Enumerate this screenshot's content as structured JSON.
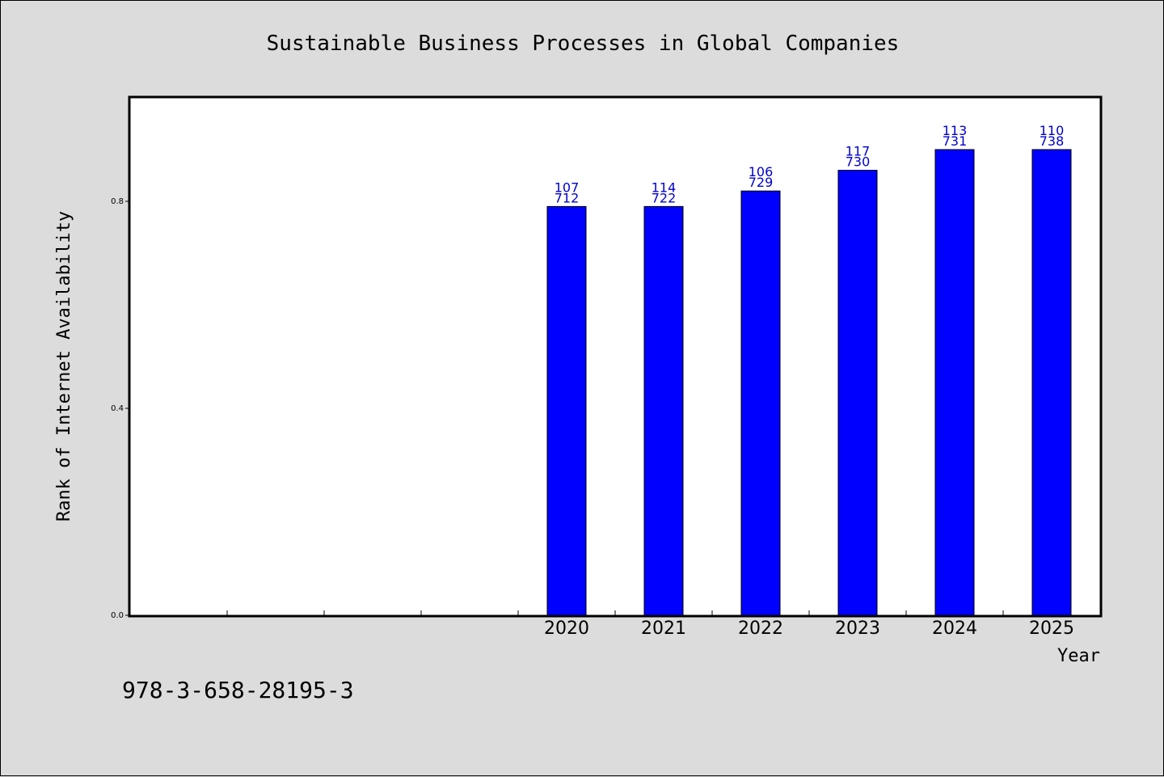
{
  "chart_data": {
    "type": "bar",
    "title": "Sustainable Business Processes in Global Companies",
    "xlabel": "Year",
    "ylabel": "Rank of Internet Availability",
    "categories": [
      "",
      "",
      "",
      "",
      "2020",
      "2021",
      "2022",
      "2023",
      "2024",
      "2025"
    ],
    "values": [
      null,
      null,
      null,
      null,
      0.79,
      0.79,
      0.82,
      0.86,
      0.9,
      0.9
    ],
    "data_labels": [
      null,
      null,
      null,
      null,
      [
        "107",
        "712"
      ],
      [
        "114",
        "722"
      ],
      [
        "106",
        "729"
      ],
      [
        "117",
        "730"
      ],
      [
        "113",
        "731"
      ],
      [
        "110",
        "738"
      ]
    ],
    "ylim": [
      0,
      1.0
    ],
    "yticks": [
      0.0,
      0.4,
      0.8
    ],
    "ytick_labels": [
      "0.0",
      "0.4",
      "0.8"
    ],
    "grid": false,
    "bar_color": "#0000ff",
    "label_color": "#0000cc"
  },
  "footer": {
    "isbn": "978-3-658-28195-3"
  }
}
